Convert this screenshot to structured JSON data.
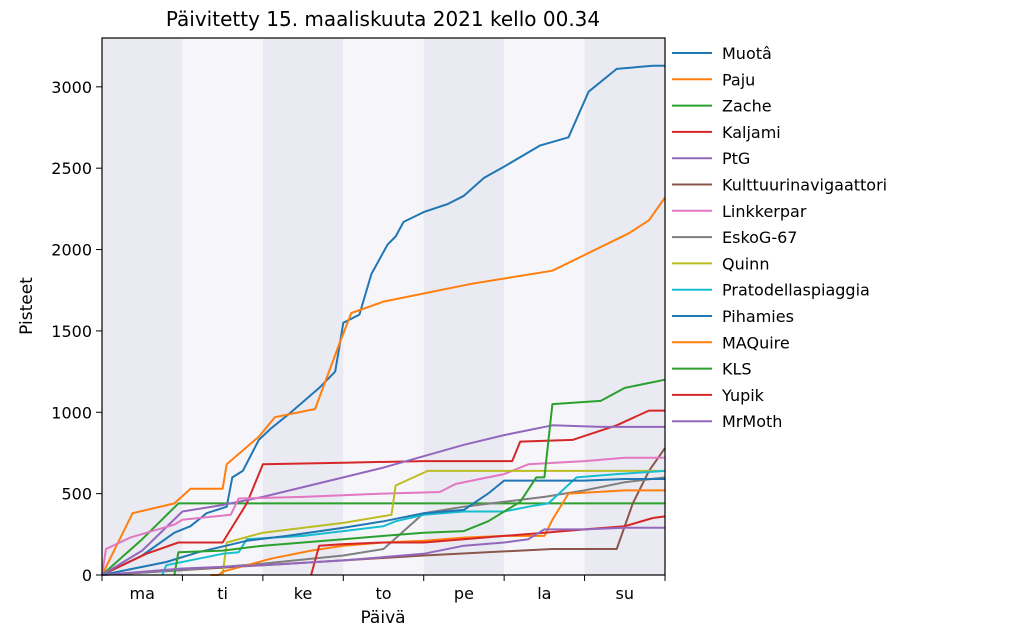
{
  "chart_data": {
    "type": "line",
    "title": "Päivitetty 15. maaliskuuta 2021 kello 00.34",
    "xlabel": "Päivä",
    "ylabel": "Pisteet",
    "xlim": [
      0,
      7
    ],
    "ylim": [
      0,
      3300
    ],
    "x_ticks": [
      0.5,
      1.5,
      2.5,
      3.5,
      4.5,
      5.5,
      6.5
    ],
    "x_tick_labels": [
      "ma",
      "ti",
      "ke",
      "to",
      "pe",
      "la",
      "su"
    ],
    "y_ticks": [
      0,
      500,
      1000,
      1500,
      2000,
      2500,
      3000
    ],
    "y_tick_labels": [
      "0",
      "500",
      "1000",
      "1500",
      "2000",
      "2500",
      "3000"
    ],
    "shaded_day_bands": [
      0,
      2,
      4,
      6
    ],
    "legend_position": "outside-right",
    "series": [
      {
        "name": "Muotâ",
        "color": "#1f77b4",
        "points": [
          [
            0,
            0
          ],
          [
            0.5,
            120
          ],
          [
            0.9,
            260
          ],
          [
            1.1,
            300
          ],
          [
            1.3,
            380
          ],
          [
            1.55,
            420
          ],
          [
            1.62,
            600
          ],
          [
            1.75,
            640
          ],
          [
            1.95,
            830
          ],
          [
            2.1,
            900
          ],
          [
            2.35,
            1000
          ],
          [
            2.7,
            1150
          ],
          [
            2.9,
            1250
          ],
          [
            3.0,
            1550
          ],
          [
            3.2,
            1600
          ],
          [
            3.35,
            1850
          ],
          [
            3.55,
            2030
          ],
          [
            3.65,
            2080
          ],
          [
            3.75,
            2170
          ],
          [
            4.0,
            2230
          ],
          [
            4.3,
            2280
          ],
          [
            4.5,
            2330
          ],
          [
            4.75,
            2440
          ],
          [
            5.0,
            2510
          ],
          [
            5.45,
            2640
          ],
          [
            5.8,
            2690
          ],
          [
            6.05,
            2970
          ],
          [
            6.4,
            3110
          ],
          [
            6.85,
            3130
          ],
          [
            7,
            3130
          ]
        ]
      },
      {
        "name": "Paju",
        "color": "#ff7f0e",
        "points": [
          [
            0,
            0
          ],
          [
            0.38,
            380
          ],
          [
            0.9,
            440
          ],
          [
            1.1,
            530
          ],
          [
            1.5,
            530
          ],
          [
            1.55,
            680
          ],
          [
            1.95,
            850
          ],
          [
            2.15,
            970
          ],
          [
            2.65,
            1020
          ],
          [
            2.95,
            1420
          ],
          [
            3.1,
            1610
          ],
          [
            3.5,
            1680
          ],
          [
            4.6,
            1790
          ],
          [
            5.6,
            1870
          ],
          [
            6.55,
            2100
          ],
          [
            6.8,
            2180
          ],
          [
            7,
            2320
          ]
        ]
      },
      {
        "name": "Zache",
        "color": "#2ca02c",
        "points": [
          [
            0,
            0
          ],
          [
            0.5,
            220
          ],
          [
            0.95,
            440
          ],
          [
            3.5,
            440
          ],
          [
            7,
            440
          ]
        ]
      },
      {
        "name": "Kaljami",
        "color": "#d62728",
        "points": [
          [
            0,
            0
          ],
          [
            0.55,
            130
          ],
          [
            0.95,
            200
          ],
          [
            1.5,
            200
          ],
          [
            1.8,
            440
          ],
          [
            2.0,
            680
          ],
          [
            3.0,
            690
          ],
          [
            4.0,
            700
          ],
          [
            5.1,
            700
          ],
          [
            5.2,
            820
          ],
          [
            5.85,
            830
          ],
          [
            6.4,
            920
          ],
          [
            6.8,
            1010
          ],
          [
            7,
            1010
          ]
        ]
      },
      {
        "name": "PtG",
        "color": "#9467bd",
        "points": [
          [
            0,
            0
          ],
          [
            0.5,
            150
          ],
          [
            1.0,
            390
          ],
          [
            1.5,
            430
          ],
          [
            2.0,
            480
          ],
          [
            2.5,
            540
          ],
          [
            3.0,
            600
          ],
          [
            3.5,
            660
          ],
          [
            4.0,
            730
          ],
          [
            4.5,
            800
          ],
          [
            5.0,
            860
          ],
          [
            5.6,
            920
          ],
          [
            6.2,
            910
          ],
          [
            7,
            910
          ]
        ]
      },
      {
        "name": "Kulttuurinavigaattori",
        "color": "#8c564b",
        "points": [
          [
            0,
            0
          ],
          [
            1.0,
            30
          ],
          [
            2.0,
            60
          ],
          [
            3.0,
            90
          ],
          [
            4.0,
            120
          ],
          [
            5.0,
            145
          ],
          [
            5.6,
            160
          ],
          [
            6.4,
            160
          ],
          [
            6.6,
            440
          ],
          [
            6.8,
            640
          ],
          [
            7,
            780
          ]
        ]
      },
      {
        "name": "Linkkerpar",
        "color": "#e377c2",
        "points": [
          [
            0,
            0
          ],
          [
            0.05,
            160
          ],
          [
            0.35,
            230
          ],
          [
            0.9,
            310
          ],
          [
            1.0,
            340
          ],
          [
            1.6,
            370
          ],
          [
            1.7,
            470
          ],
          [
            2.5,
            480
          ],
          [
            3.5,
            500
          ],
          [
            4.2,
            510
          ],
          [
            4.4,
            560
          ],
          [
            5.0,
            620
          ],
          [
            5.3,
            680
          ],
          [
            6.0,
            700
          ],
          [
            6.5,
            720
          ],
          [
            7,
            720
          ]
        ]
      },
      {
        "name": "EskoG-67",
        "color": "#7f7f7f",
        "points": [
          [
            0,
            0
          ],
          [
            1.0,
            30
          ],
          [
            2.0,
            70
          ],
          [
            3.0,
            120
          ],
          [
            3.5,
            160
          ],
          [
            4.0,
            380
          ],
          [
            4.5,
            420
          ],
          [
            5.0,
            450
          ],
          [
            5.5,
            480
          ],
          [
            6.0,
            520
          ],
          [
            6.5,
            570
          ],
          [
            7,
            600
          ]
        ]
      },
      {
        "name": "Quinn",
        "color": "#bcbd22",
        "points": [
          [
            1.5,
            0
          ],
          [
            1.55,
            200
          ],
          [
            2.0,
            260
          ],
          [
            3.0,
            320
          ],
          [
            3.6,
            370
          ],
          [
            3.65,
            550
          ],
          [
            4.05,
            640
          ],
          [
            5.5,
            640
          ],
          [
            6.0,
            640
          ],
          [
            7,
            640
          ]
        ]
      },
      {
        "name": "Pratodellaspiaggia",
        "color": "#17becf",
        "points": [
          [
            0.75,
            0
          ],
          [
            0.8,
            60
          ],
          [
            1.2,
            100
          ],
          [
            1.5,
            130
          ],
          [
            1.7,
            140
          ],
          [
            1.8,
            220
          ],
          [
            2.5,
            240
          ],
          [
            3.0,
            270
          ],
          [
            3.5,
            300
          ],
          [
            3.65,
            330
          ],
          [
            4.0,
            370
          ],
          [
            4.5,
            390
          ],
          [
            5.0,
            390
          ],
          [
            5.3,
            420
          ],
          [
            5.55,
            440
          ],
          [
            5.9,
            600
          ],
          [
            6.4,
            620
          ],
          [
            7,
            640
          ]
        ]
      },
      {
        "name": "Pihamies",
        "color": "#1f77b4",
        "points": [
          [
            0,
            0
          ],
          [
            0.8,
            80
          ],
          [
            1.2,
            140
          ],
          [
            1.8,
            210
          ],
          [
            2.3,
            240
          ],
          [
            3.0,
            290
          ],
          [
            3.5,
            330
          ],
          [
            4.0,
            380
          ],
          [
            4.5,
            400
          ],
          [
            4.8,
            500
          ],
          [
            5.0,
            580
          ],
          [
            5.5,
            580
          ],
          [
            6.0,
            580
          ],
          [
            6.5,
            590
          ],
          [
            7,
            590
          ]
        ]
      },
      {
        "name": "MAQuire",
        "color": "#ff7f0e",
        "points": [
          [
            1.35,
            0
          ],
          [
            1.45,
            0
          ],
          [
            1.5,
            20
          ],
          [
            2.1,
            100
          ],
          [
            2.6,
            150
          ],
          [
            3.0,
            180
          ],
          [
            3.5,
            200
          ],
          [
            4.0,
            210
          ],
          [
            4.5,
            230
          ],
          [
            5.0,
            240
          ],
          [
            5.5,
            240
          ],
          [
            5.6,
            340
          ],
          [
            5.8,
            500
          ],
          [
            6.5,
            520
          ],
          [
            7,
            520
          ]
        ]
      },
      {
        "name": "KLS",
        "color": "#2ca02c",
        "points": [
          [
            0.9,
            0
          ],
          [
            0.95,
            140
          ],
          [
            1.5,
            150
          ],
          [
            2.0,
            180
          ],
          [
            2.5,
            200
          ],
          [
            3.0,
            220
          ],
          [
            3.5,
            240
          ],
          [
            4.0,
            260
          ],
          [
            4.5,
            270
          ],
          [
            4.8,
            330
          ],
          [
            5.2,
            450
          ],
          [
            5.4,
            600
          ],
          [
            5.5,
            600
          ],
          [
            5.6,
            1050
          ],
          [
            6.2,
            1070
          ],
          [
            6.5,
            1150
          ],
          [
            7,
            1200
          ]
        ]
      },
      {
        "name": "Yupik",
        "color": "#d62728",
        "points": [
          [
            2.6,
            0
          ],
          [
            2.7,
            180
          ],
          [
            3.0,
            190
          ],
          [
            3.5,
            200
          ],
          [
            4.0,
            200
          ],
          [
            4.5,
            220
          ],
          [
            5.0,
            240
          ],
          [
            5.5,
            260
          ],
          [
            6.0,
            280
          ],
          [
            6.5,
            300
          ],
          [
            6.85,
            350
          ],
          [
            7,
            360
          ]
        ]
      },
      {
        "name": "MrMoth",
        "color": "#9467bd",
        "points": [
          [
            0,
            0
          ],
          [
            1.0,
            40
          ],
          [
            2.0,
            60
          ],
          [
            3.0,
            90
          ],
          [
            4.0,
            130
          ],
          [
            4.5,
            180
          ],
          [
            5.0,
            200
          ],
          [
            5.3,
            220
          ],
          [
            5.5,
            280
          ],
          [
            6.0,
            280
          ],
          [
            6.5,
            290
          ],
          [
            7,
            290
          ]
        ]
      }
    ]
  }
}
